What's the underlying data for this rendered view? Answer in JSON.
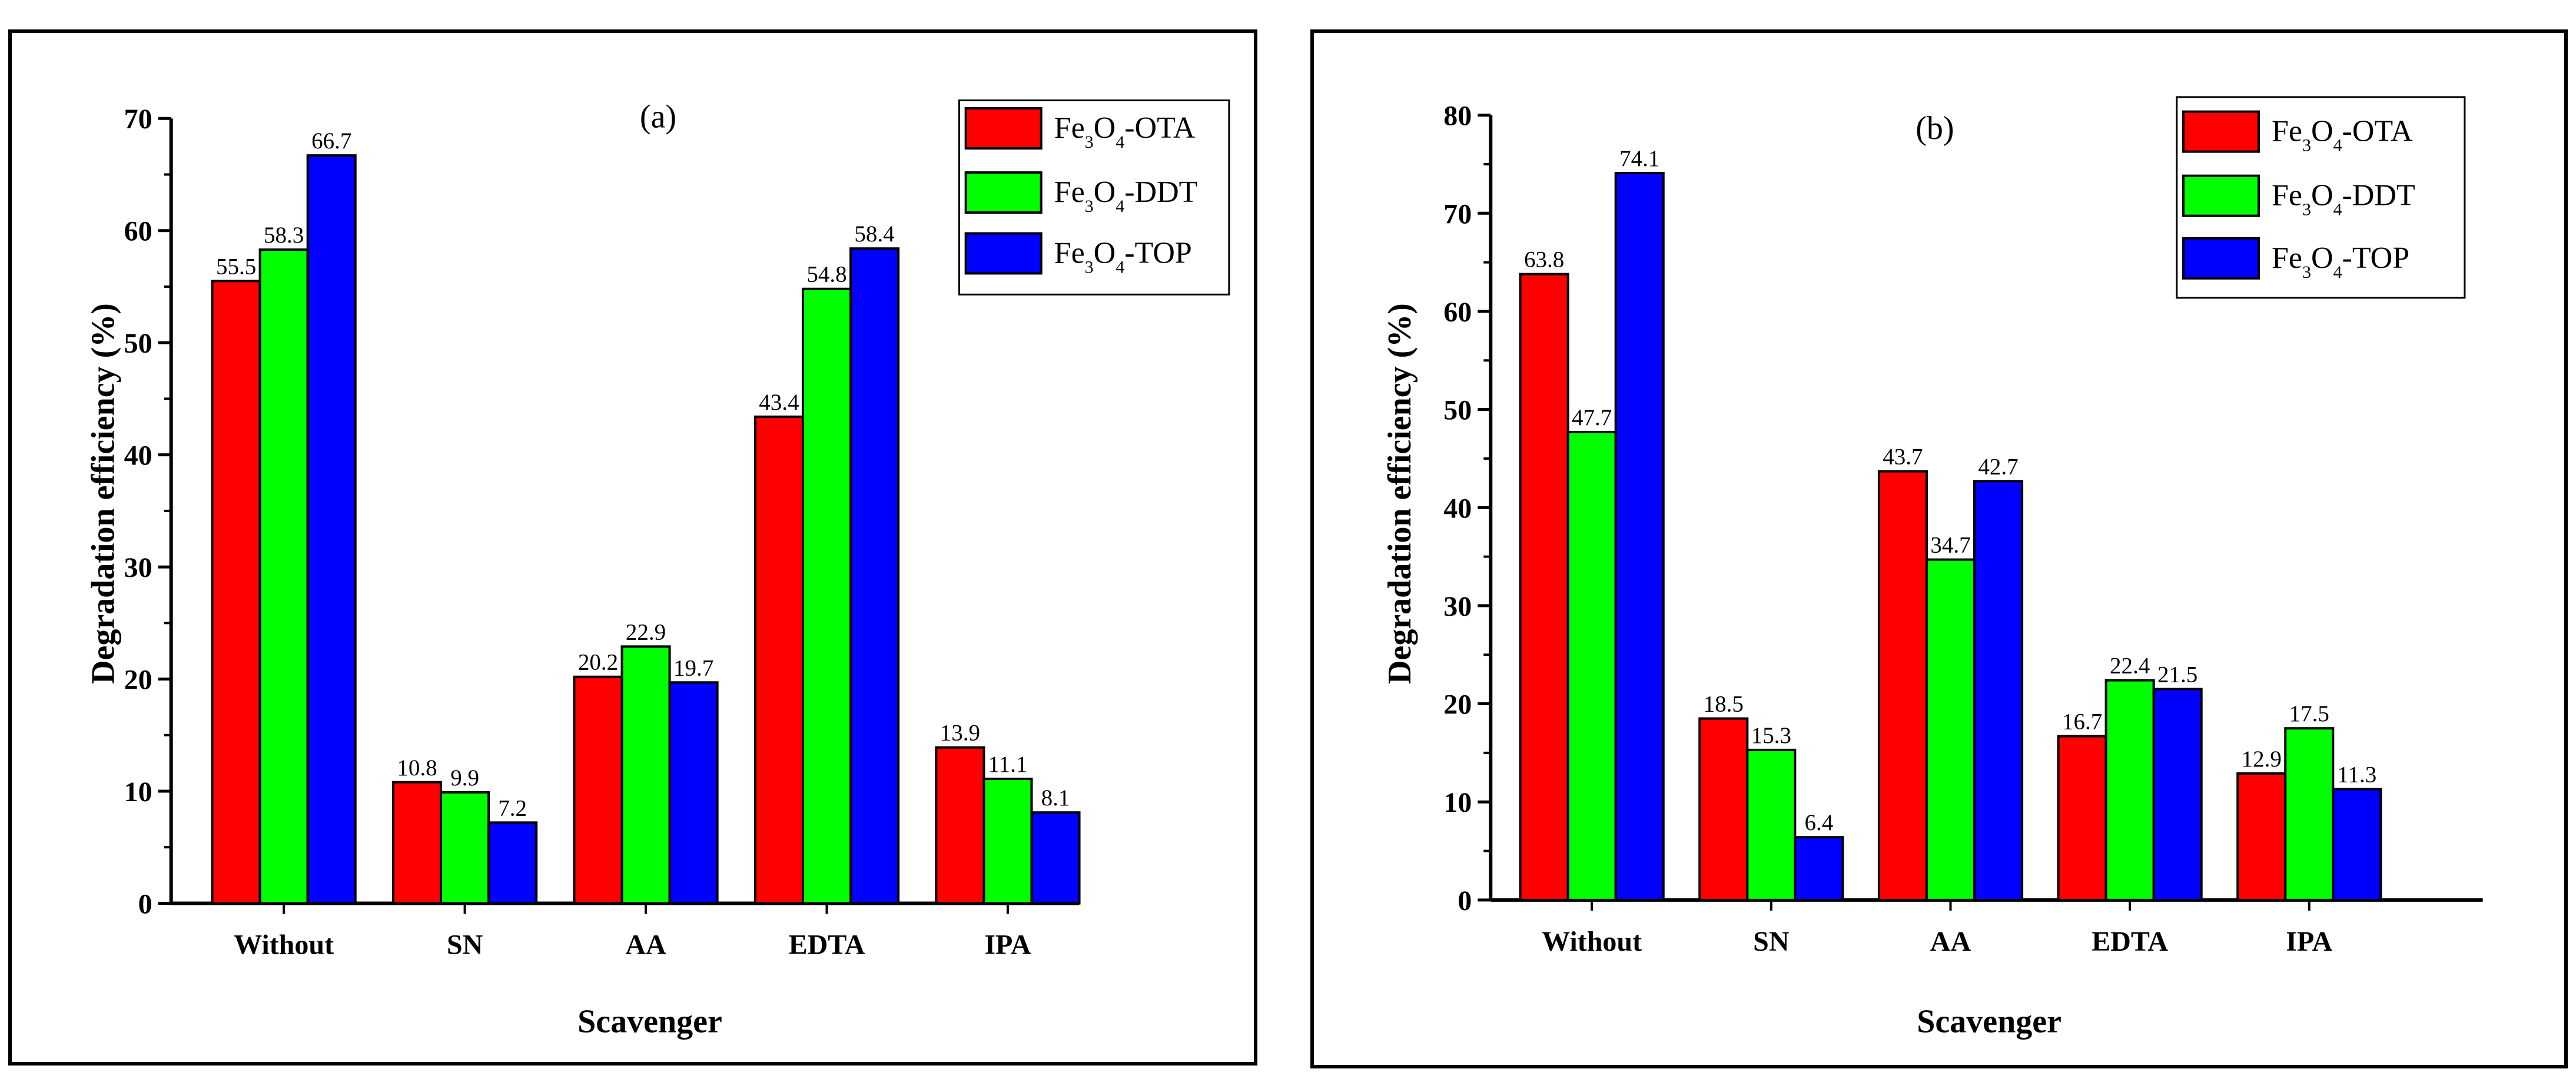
{
  "chart_data": [
    {
      "type": "bar",
      "panel_label": "(a)",
      "title": "",
      "xlabel": "Scavenger",
      "ylabel": "Degradation efficiency (%)",
      "ylim": [
        0,
        70
      ],
      "yticks": [
        "0",
        "10",
        "20",
        "30",
        "40",
        "50",
        "60",
        "70"
      ],
      "categories": [
        "Without",
        "SN",
        "AA",
        "EDTA",
        "IPA"
      ],
      "series": [
        {
          "name": "Fe3O4-OTA",
          "color": "#ff0000",
          "values": [
            55.5,
            10.8,
            20.2,
            43.4,
            13.9
          ],
          "labels": [
            "55.5",
            "10.8",
            "20.2",
            "43.4",
            "13.9"
          ]
        },
        {
          "name": "Fe3O4-DDT",
          "color": "#00ff00",
          "values": [
            58.3,
            9.9,
            22.9,
            54.8,
            11.1
          ],
          "labels": [
            "58.3",
            "9.9",
            "22.9",
            "54.8",
            "11.1"
          ]
        },
        {
          "name": "Fe3O4-TOP",
          "color": "#0000ff",
          "values": [
            66.7,
            7.2,
            19.7,
            58.4,
            8.1
          ],
          "labels": [
            "66.7",
            "7.2",
            "19.7",
            "58.4",
            "8.1"
          ]
        }
      ],
      "legend": [
        "Fe3O4-OTA",
        "Fe3O4-DDT",
        "Fe3O4-TOP"
      ],
      "legend_position": "top-right"
    },
    {
      "type": "bar",
      "panel_label": "(b)",
      "title": "",
      "xlabel": "Scavenger",
      "ylabel": "Degradation efficiency (%)",
      "ylim": [
        0,
        80
      ],
      "yticks": [
        "0",
        "10",
        "20",
        "30",
        "40",
        "50",
        "60",
        "70",
        "80"
      ],
      "categories": [
        "Without",
        "SN",
        "AA",
        "EDTA",
        "IPA"
      ],
      "series": [
        {
          "name": "Fe3O4-OTA",
          "color": "#ff0000",
          "values": [
            63.8,
            18.5,
            43.7,
            16.7,
            12.9
          ],
          "labels": [
            "63.8",
            "18.5",
            "43.7",
            "16.7",
            "12.9"
          ]
        },
        {
          "name": "Fe3O4-DDT",
          "color": "#00ff00",
          "values": [
            47.7,
            15.3,
            34.7,
            22.4,
            17.5
          ],
          "labels": [
            "47.7",
            "15.3",
            "34.7",
            "22.4",
            "17.5"
          ]
        },
        {
          "name": "Fe3O4-TOP",
          "color": "#0000ff",
          "values": [
            74.1,
            6.4,
            42.7,
            21.5,
            11.3
          ],
          "labels": [
            "74.1",
            "6.4",
            "42.7",
            "21.5",
            "11.3"
          ]
        }
      ],
      "legend": [
        "Fe3O4-OTA",
        "Fe3O4-DDT",
        "Fe3O4-TOP"
      ],
      "legend_position": "top-right"
    }
  ]
}
